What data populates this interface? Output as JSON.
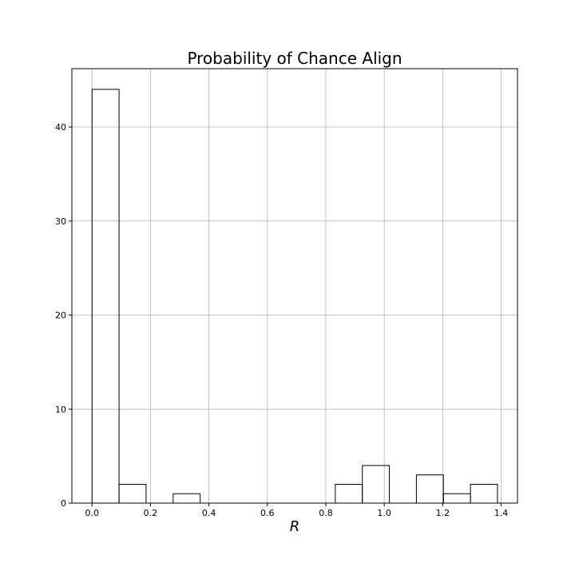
{
  "chart_data": {
    "type": "bar",
    "title": "Probability of Chance Align",
    "xlabel": "R",
    "ylabel": "",
    "grid": true,
    "histogram": true,
    "bin_edges": [
      0.0,
      0.0925,
      0.185,
      0.2775,
      0.37,
      0.4625,
      0.555,
      0.6475,
      0.74,
      0.8325,
      0.925,
      1.0175,
      1.11,
      1.2025,
      1.295,
      1.3875
    ],
    "counts": [
      44,
      2,
      0,
      1,
      0,
      0,
      0,
      0,
      0,
      2,
      4,
      0,
      3,
      1,
      2
    ],
    "xlim": [
      -0.069,
      1.456
    ],
    "ylim": [
      0,
      46.2
    ],
    "xticks": [
      0.0,
      0.2,
      0.4,
      0.6,
      0.8,
      1.0,
      1.2,
      1.4
    ],
    "xtick_labels": [
      "0.0",
      "0.2",
      "0.4",
      "0.6",
      "0.8",
      "1.0",
      "1.2",
      "1.4"
    ],
    "yticks": [
      0,
      10,
      20,
      30,
      40
    ],
    "ytick_labels": [
      "0",
      "10",
      "20",
      "30",
      "40"
    ]
  }
}
